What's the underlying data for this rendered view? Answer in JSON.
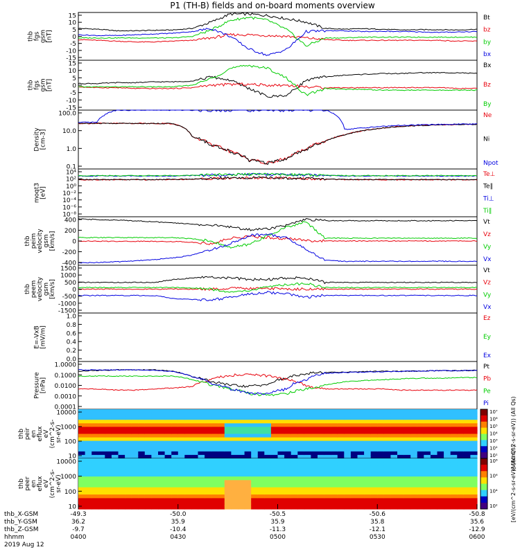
{
  "title": "P1 (TH-B) fields and on-board moments overview",
  "colors": {
    "black": "#000000",
    "red": "#e8000b",
    "green": "#00cc00",
    "blue": "#0000e0"
  },
  "chart_data": [
    {
      "type": "line",
      "panel": "fgs_gsm",
      "ylabel": [
        "thb",
        "fgs",
        "gsm",
        "[nT]"
      ],
      "yticks": [
        "15",
        "10",
        "5",
        "0",
        "-5",
        "-10",
        "-15"
      ],
      "ylim": [
        -15,
        15
      ],
      "series": [
        {
          "name": "Bt",
          "color": "black",
          "values": [
            5,
            4.5,
            3.5,
            3.5,
            3.8,
            4,
            5,
            9,
            14,
            14,
            13,
            11,
            9,
            5,
            4.5,
            4.8,
            4.5,
            4,
            4.2,
            4.2,
            4,
            4.5
          ]
        },
        {
          "name": "bz",
          "color": "red",
          "values": [
            -2,
            -2.5,
            -3,
            -3.5,
            -3.5,
            -3,
            -2.5,
            -1,
            1,
            1,
            0.5,
            0,
            -1,
            -2,
            -2.5,
            -2.5,
            -2.5,
            -2.5,
            -2.5,
            -2.5,
            -3,
            -3
          ]
        },
        {
          "name": "by",
          "color": "green",
          "values": [
            -1,
            -1,
            -1,
            -1,
            -1,
            -1,
            0,
            4,
            10,
            12,
            10,
            4,
            -6,
            -1,
            -1,
            -0.5,
            -0.5,
            -0.5,
            -0.5,
            -0.5,
            -0.5,
            -0.5
          ]
        },
        {
          "name": "bx",
          "color": "blue",
          "values": [
            1,
            0.5,
            0.5,
            1,
            1.5,
            2,
            3,
            5,
            0,
            -8,
            -12,
            -8,
            3,
            3.5,
            3.5,
            3,
            3.2,
            3,
            2.8,
            2.5,
            2.8,
            3
          ]
        }
      ]
    },
    {
      "type": "line",
      "panel": "fgs_gsm_b",
      "ylabel": [
        "thb",
        "fgs",
        "gsm",
        "[nT]"
      ],
      "yticks": [
        "15",
        "10",
        "5",
        "0",
        "-5",
        "-10",
        "-15"
      ],
      "ylim": [
        -15,
        15
      ],
      "series": [
        {
          "name": "Bx",
          "color": "black",
          "values": [
            1,
            1,
            1.5,
            1.5,
            2,
            2,
            2.5,
            5,
            3,
            -2,
            -7,
            -6,
            3,
            5,
            6,
            6.5,
            7,
            7,
            7.5,
            7.5,
            7.5,
            7
          ]
        },
        {
          "name": "Bz",
          "color": "red",
          "values": [
            -1,
            -1.5,
            -1.5,
            -2,
            -2,
            -2,
            -1.5,
            0,
            0.5,
            0.5,
            0,
            0,
            -1,
            -1.5,
            -1.5,
            -1.5,
            -1.5,
            -1.5,
            -1.5,
            -1.5,
            -2,
            -2
          ]
        },
        {
          "name": "By",
          "color": "green",
          "values": [
            -1,
            -1,
            -1,
            -1,
            -1,
            -1,
            0,
            4,
            10,
            12,
            10,
            4,
            -6,
            -2,
            -2.5,
            -2.5,
            -3,
            -3,
            -3,
            -3,
            -3,
            -3
          ]
        }
      ]
    },
    {
      "type": "line",
      "panel": "density",
      "log": true,
      "ylabel": [
        "Density",
        "[cm-3]"
      ],
      "yticks": [
        "100.0",
        "10.0",
        "1.0",
        "0.1"
      ],
      "ylim": [
        0.02,
        200
      ],
      "series": [
        {
          "name": "Ne",
          "color": "red",
          "values": [
            25,
            25,
            25,
            25,
            25,
            24,
            3,
            0.8,
            0.3,
            0.08,
            0.05,
            0.1,
            0.4,
            1.5,
            4,
            8,
            12,
            16,
            18,
            20,
            21,
            22
          ]
        },
        {
          "name": "Ni",
          "color": "black",
          "values": [
            25,
            25,
            25,
            25,
            25,
            24,
            3,
            0.8,
            0.3,
            0.08,
            0.05,
            0.1,
            0.4,
            1.5,
            4,
            8,
            12,
            16,
            18,
            20,
            21,
            22
          ]
        },
        {
          "name": "Npot",
          "color": "blue",
          "values": [
            28,
            30,
            200,
            200,
            200,
            200,
            200,
            200,
            200,
            200,
            200,
            200,
            200,
            200,
            10,
            12,
            16,
            18,
            20,
            21,
            22,
            23
          ]
        }
      ]
    },
    {
      "type": "line",
      "panel": "moqt3",
      "log": true,
      "ylabel": [
        "moqt3",
        "[eV]"
      ],
      "yticks": [
        "10⁴",
        "10²",
        "10⁰",
        "10⁻²",
        "10⁻⁴",
        "10⁻⁶",
        "10⁻⁸"
      ],
      "ylim": [
        1e-09,
        100000.0
      ],
      "series": [
        {
          "name": "Te⊥",
          "color": "red",
          "values": [
            70,
            70,
            70,
            70,
            70,
            80,
            100,
            150,
            200,
            250,
            250,
            200,
            150,
            100,
            80,
            70,
            70,
            70,
            70,
            70,
            70,
            70
          ]
        },
        {
          "name": "Te∥",
          "color": "black",
          "values": [
            80,
            80,
            80,
            80,
            80,
            90,
            110,
            160,
            220,
            260,
            260,
            220,
            160,
            110,
            90,
            80,
            80,
            80,
            80,
            80,
            80,
            80
          ]
        },
        {
          "name": "Ti⊥",
          "color": "blue",
          "values": [
            900,
            900,
            900,
            900,
            900,
            900,
            1200,
            1500,
            2000,
            2500,
            2500,
            2000,
            1500,
            1200,
            1000,
            900,
            900,
            900,
            900,
            900,
            900,
            900
          ]
        },
        {
          "name": "Ti∥",
          "color": "green",
          "values": [
            1100,
            1100,
            1100,
            1100,
            1100,
            1100,
            1400,
            1800,
            2200,
            2700,
            2700,
            2200,
            1800,
            1400,
            1200,
            1100,
            1100,
            1100,
            1100,
            1100,
            1100,
            1100
          ]
        }
      ]
    },
    {
      "type": "line",
      "panel": "peim_velocity",
      "ylabel": [
        "thb",
        "peim",
        "velocity",
        "gsm",
        "[km/s]"
      ],
      "yticks": [
        "400",
        "200",
        "0",
        "-200",
        "-400"
      ],
      "ylim": [
        -430,
        430
      ],
      "series": [
        {
          "name": "Vt",
          "color": "black",
          "values": [
            390,
            380,
            370,
            360,
            340,
            320,
            300,
            280,
            250,
            200,
            220,
            280,
            380,
            360,
            360,
            360,
            360,
            360,
            360,
            360,
            360,
            360
          ]
        },
        {
          "name": "Vz",
          "color": "red",
          "values": [
            0,
            -5,
            -5,
            -5,
            -5,
            -10,
            -20,
            -50,
            50,
            80,
            60,
            40,
            10,
            0,
            0,
            0,
            0,
            0,
            0,
            0,
            0,
            0
          ]
        },
        {
          "name": "Vy",
          "color": "green",
          "values": [
            60,
            60,
            60,
            60,
            60,
            60,
            40,
            0,
            -120,
            -60,
            100,
            250,
            340,
            50,
            50,
            50,
            50,
            50,
            50,
            50,
            50,
            50
          ]
        },
        {
          "name": "Vx",
          "color": "blue",
          "values": [
            -390,
            -380,
            -370,
            -350,
            -330,
            -300,
            -250,
            -150,
            -50,
            100,
            120,
            50,
            -150,
            -340,
            -360,
            -360,
            -360,
            -360,
            -360,
            -360,
            -360,
            -360
          ]
        }
      ]
    },
    {
      "type": "line",
      "panel": "peem_velocity",
      "ylabel": [
        "thb",
        "peem",
        "velocity",
        "gsm",
        "[km/s]"
      ],
      "yticks": [
        "1500",
        "1000",
        "500",
        "0",
        "-500",
        "-1000",
        "-1500"
      ],
      "ylim": [
        -1500,
        1500
      ],
      "series": [
        {
          "name": "Vt",
          "color": "black",
          "values": [
            420,
            420,
            420,
            420,
            420,
            600,
            700,
            750,
            700,
            600,
            600,
            700,
            700,
            420,
            420,
            420,
            420,
            420,
            420,
            420,
            420,
            420
          ]
        },
        {
          "name": "Vz",
          "color": "red",
          "values": [
            0,
            0,
            0,
            0,
            0,
            0,
            0,
            0,
            50,
            50,
            50,
            0,
            0,
            0,
            0,
            0,
            0,
            0,
            0,
            0,
            0,
            0
          ]
        },
        {
          "name": "Vy",
          "color": "green",
          "values": [
            100,
            100,
            100,
            100,
            100,
            100,
            80,
            0,
            -200,
            -100,
            150,
            300,
            350,
            100,
            100,
            100,
            100,
            100,
            100,
            100,
            100,
            100
          ]
        },
        {
          "name": "Vx",
          "color": "blue",
          "values": [
            -400,
            -400,
            -400,
            -400,
            -400,
            -600,
            -650,
            -700,
            -500,
            -300,
            -200,
            -300,
            -500,
            -400,
            -400,
            -400,
            -400,
            -400,
            -400,
            -400,
            -400,
            -400
          ]
        }
      ]
    },
    {
      "type": "line",
      "panel": "e_field",
      "ylabel": [
        "E=-VxB",
        "[mV/m]"
      ],
      "yticks": [
        "1.0",
        "0.8",
        "0.6",
        "0.4",
        "0.2",
        "0.0"
      ],
      "ylim": [
        0,
        1
      ],
      "series": [
        {
          "name": "Ez",
          "color": "red",
          "values": []
        },
        {
          "name": "Ey",
          "color": "green",
          "values": []
        },
        {
          "name": "Ex",
          "color": "blue",
          "values": []
        }
      ]
    },
    {
      "type": "line",
      "panel": "pressure",
      "log": true,
      "ylabel": [
        "Pressure",
        "[nPa]"
      ],
      "yticks": [
        "1.0000",
        "0.1000",
        "0.0100",
        "0.0010",
        "0.0001"
      ],
      "ylim": [
        0.0001,
        1
      ],
      "series": [
        {
          "name": "Pt",
          "color": "black",
          "values": [
            0.15,
            0.18,
            0.2,
            0.2,
            0.2,
            0.15,
            0.05,
            0.02,
            0.01,
            0.008,
            0.012,
            0.04,
            0.1,
            0.12,
            0.13,
            0.14,
            0.15,
            0.15,
            0.16,
            0.17,
            0.17,
            0.18
          ]
        },
        {
          "name": "Pb",
          "color": "red",
          "values": [
            0.005,
            0.005,
            0.004,
            0.004,
            0.005,
            0.006,
            0.008,
            0.03,
            0.07,
            0.08,
            0.06,
            0.03,
            0.008,
            0.005,
            0.005,
            0.005,
            0.005,
            0.004,
            0.004,
            0.004,
            0.004,
            0.004
          ]
        },
        {
          "name": "Pe",
          "color": "green",
          "values": [
            0.06,
            0.06,
            0.06,
            0.06,
            0.06,
            0.06,
            0.03,
            0.01,
            0.005,
            0.002,
            0.0015,
            0.002,
            0.005,
            0.01,
            0.02,
            0.025,
            0.03,
            0.035,
            0.04,
            0.04,
            0.045,
            0.045
          ]
        },
        {
          "name": "Pi",
          "color": "blue",
          "values": [
            0.2,
            0.2,
            0.2,
            0.2,
            0.18,
            0.14,
            0.05,
            0.015,
            0.005,
            0.002,
            0.002,
            0.005,
            0.03,
            0.1,
            0.12,
            0.13,
            0.14,
            0.15,
            0.16,
            0.17,
            0.17,
            0.18
          ]
        }
      ]
    },
    {
      "type": "heatmap",
      "panel": "peir_en_eflux",
      "ylabel": [
        "thb",
        "peir",
        "en",
        "eflux",
        "eV",
        "(cm^2-s-",
        "sr-eV)"
      ],
      "yticks": [
        "10000",
        "1000",
        "100",
        "10"
      ],
      "ylim": [
        5,
        25000
      ],
      "log": true,
      "colorbar_labels": [
        "10⁷",
        "10⁶",
        "10⁵",
        "10⁴",
        "10³",
        "10²",
        "10¹"
      ],
      "colorbar_title": "eV/(cm^2-s-sr-eV)) (All Qs)",
      "band_energy_ev": 700
    },
    {
      "type": "heatmap",
      "panel": "peer_en_eflux",
      "ylabel": [
        "thb",
        "peer",
        "en",
        "eflux",
        "eV",
        "(cm^2-s-",
        "sr-eV)"
      ],
      "yticks": [
        "10000",
        "1000",
        "100",
        "10"
      ],
      "ylim": [
        5,
        25000
      ],
      "log": true,
      "colorbar_labels": [
        "10⁸",
        "10⁶",
        "10⁴",
        "10²"
      ],
      "colorbar_title": "[eV/(cm^2-s-sr-eV)] (All Qs)"
    }
  ],
  "xaxis": {
    "rows": [
      {
        "label": "thb_X-GSM",
        "values": [
          "-49.3",
          "-50.0",
          "-50.5",
          "-50.6",
          "-50.8"
        ]
      },
      {
        "label": "thb_Y-GSM",
        "values": [
          "36.2",
          "35.9",
          "35.9",
          "35.8",
          "35.6"
        ]
      },
      {
        "label": "thb_Z-GSM",
        "values": [
          "-9.7",
          "-10.4",
          "-11.3",
          "-12.1",
          "-12.9"
        ]
      },
      {
        "label": "hhmm",
        "values": [
          "0400",
          "0430",
          "0500",
          "0530",
          "0600"
        ]
      }
    ],
    "date": "2019 Aug 12"
  }
}
